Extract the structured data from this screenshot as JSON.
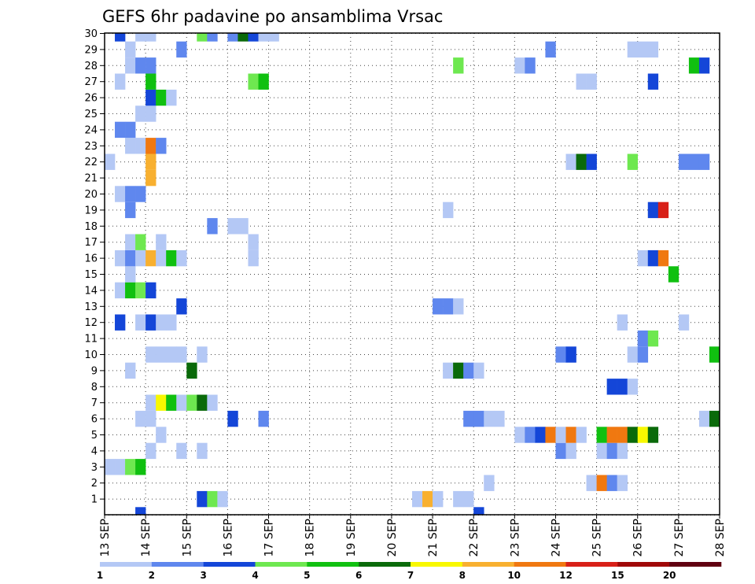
{
  "chart_data": {
    "type": "heatmap",
    "title": "GEFS 6hr padavine po ansamblima Vrsac",
    "xlabel": "",
    "ylabel": "",
    "x_ticks": [
      "13 SEP",
      "14 SEP",
      "15 SEP",
      "16 SEP",
      "17 SEP",
      "18 SEP",
      "19 SEP",
      "20 SEP",
      "21 SEP",
      "22 SEP",
      "23 SEP",
      "24 SEP",
      "25 SEP",
      "26 SEP",
      "27 SEP",
      "28 SEP"
    ],
    "xlim": [
      "13 SEP 00z",
      "28 SEP 00z"
    ],
    "time_step": "6hr",
    "ylim": [
      0,
      30
    ],
    "y_ticks": [
      1,
      2,
      3,
      4,
      5,
      6,
      7,
      8,
      9,
      10,
      11,
      12,
      13,
      14,
      15,
      16,
      17,
      18,
      19,
      20,
      21,
      22,
      23,
      24,
      25,
      26,
      27,
      28,
      29,
      30
    ],
    "grid": true,
    "colorbar": {
      "placement": "bottom",
      "labels": [
        "1",
        "2",
        "3",
        "4",
        "5",
        "6",
        "7",
        "8",
        "10",
        "12",
        "15",
        "20"
      ],
      "colors": [
        "#b4c8f5",
        "#5f87ee",
        "#1446d8",
        "#6ee850",
        "#10c010",
        "#0a6a0a",
        "#f8f800",
        "#f8b030",
        "#f07810",
        "#d82018",
        "#a00808",
        "#600010"
      ]
    },
    "levels": [
      1,
      2,
      3,
      4,
      5,
      6,
      7,
      8,
      10,
      12,
      15,
      20
    ],
    "cell_columns": "6-hour step index from 13 SEP 00z (0-59)",
    "cells": [
      [
        3,
        0,
        3
      ],
      [
        36,
        0,
        3
      ],
      [
        9,
        1,
        3
      ],
      [
        10,
        1,
        4
      ],
      [
        11,
        1,
        1
      ],
      [
        30,
        1,
        1
      ],
      [
        31,
        1,
        8
      ],
      [
        32,
        1,
        1
      ],
      [
        34,
        1,
        1
      ],
      [
        35,
        1,
        1
      ],
      [
        37,
        2,
        1
      ],
      [
        47,
        2,
        1
      ],
      [
        48,
        2,
        10
      ],
      [
        49,
        2,
        2
      ],
      [
        50,
        2,
        1
      ],
      [
        0,
        3,
        1
      ],
      [
        1,
        3,
        1
      ],
      [
        2,
        3,
        4
      ],
      [
        3,
        3,
        5
      ],
      [
        4,
        4,
        1
      ],
      [
        7,
        4,
        1
      ],
      [
        9,
        4,
        1
      ],
      [
        44,
        4,
        2
      ],
      [
        45,
        4,
        1
      ],
      [
        48,
        4,
        1
      ],
      [
        49,
        4,
        2
      ],
      [
        50,
        4,
        1
      ],
      [
        5,
        5,
        1
      ],
      [
        40,
        5,
        1
      ],
      [
        41,
        5,
        2
      ],
      [
        42,
        5,
        3
      ],
      [
        43,
        5,
        10
      ],
      [
        44,
        5,
        1
      ],
      [
        45,
        5,
        10
      ],
      [
        46,
        5,
        1
      ],
      [
        48,
        5,
        5
      ],
      [
        49,
        5,
        10
      ],
      [
        50,
        5,
        10
      ],
      [
        51,
        5,
        6
      ],
      [
        52,
        5,
        7
      ],
      [
        53,
        5,
        6
      ],
      [
        3,
        6,
        1
      ],
      [
        4,
        6,
        1
      ],
      [
        12,
        6,
        3
      ],
      [
        15,
        6,
        2
      ],
      [
        35,
        6,
        2
      ],
      [
        36,
        6,
        2
      ],
      [
        37,
        6,
        1
      ],
      [
        38,
        6,
        1
      ],
      [
        58,
        6,
        1
      ],
      [
        59,
        6,
        6
      ],
      [
        4,
        7,
        1
      ],
      [
        5,
        7,
        7
      ],
      [
        6,
        7,
        5
      ],
      [
        7,
        7,
        1
      ],
      [
        8,
        7,
        4
      ],
      [
        9,
        7,
        6
      ],
      [
        10,
        7,
        1
      ],
      [
        49,
        8,
        3
      ],
      [
        50,
        8,
        3
      ],
      [
        51,
        8,
        1
      ],
      [
        2,
        9,
        1
      ],
      [
        8,
        9,
        6
      ],
      [
        33,
        9,
        1
      ],
      [
        34,
        9,
        6
      ],
      [
        35,
        9,
        2
      ],
      [
        36,
        9,
        1
      ],
      [
        4,
        10,
        1
      ],
      [
        5,
        10,
        1
      ],
      [
        6,
        10,
        1
      ],
      [
        7,
        10,
        1
      ],
      [
        9,
        10,
        1
      ],
      [
        44,
        10,
        2
      ],
      [
        45,
        10,
        3
      ],
      [
        51,
        10,
        1
      ],
      [
        52,
        10,
        2
      ],
      [
        59,
        10,
        5
      ],
      [
        52,
        11,
        2
      ],
      [
        53,
        11,
        4
      ],
      [
        1,
        12,
        3
      ],
      [
        3,
        12,
        1
      ],
      [
        4,
        12,
        3
      ],
      [
        5,
        12,
        1
      ],
      [
        6,
        12,
        1
      ],
      [
        50,
        12,
        1
      ],
      [
        56,
        12,
        1
      ],
      [
        7,
        13,
        3
      ],
      [
        32,
        13,
        2
      ],
      [
        33,
        13,
        2
      ],
      [
        34,
        13,
        1
      ],
      [
        1,
        14,
        1
      ],
      [
        2,
        14,
        5
      ],
      [
        3,
        14,
        4
      ],
      [
        4,
        14,
        3
      ],
      [
        2,
        15,
        1
      ],
      [
        55,
        15,
        5
      ],
      [
        1,
        16,
        1
      ],
      [
        2,
        16,
        2
      ],
      [
        3,
        16,
        1
      ],
      [
        4,
        16,
        8
      ],
      [
        5,
        16,
        1
      ],
      [
        6,
        16,
        5
      ],
      [
        7,
        16,
        1
      ],
      [
        14,
        16,
        1
      ],
      [
        52,
        16,
        1
      ],
      [
        53,
        16,
        3
      ],
      [
        54,
        16,
        10
      ],
      [
        2,
        17,
        1
      ],
      [
        3,
        17,
        4
      ],
      [
        5,
        17,
        1
      ],
      [
        14,
        17,
        1
      ],
      [
        10,
        18,
        2
      ],
      [
        12,
        18,
        1
      ],
      [
        13,
        18,
        1
      ],
      [
        2,
        19,
        2
      ],
      [
        33,
        19,
        1
      ],
      [
        53,
        19,
        3
      ],
      [
        54,
        19,
        12
      ],
      [
        1,
        20,
        1
      ],
      [
        2,
        20,
        2
      ],
      [
        3,
        20,
        2
      ],
      [
        4,
        21,
        8
      ],
      [
        0,
        22,
        1
      ],
      [
        4,
        22,
        8
      ],
      [
        45,
        22,
        1
      ],
      [
        46,
        22,
        6
      ],
      [
        47,
        22,
        3
      ],
      [
        51,
        22,
        4
      ],
      [
        56,
        22,
        2
      ],
      [
        57,
        22,
        2
      ],
      [
        58,
        22,
        2
      ],
      [
        2,
        23,
        1
      ],
      [
        3,
        23,
        1
      ],
      [
        4,
        23,
        10
      ],
      [
        5,
        23,
        2
      ],
      [
        1,
        24,
        2
      ],
      [
        2,
        24,
        2
      ],
      [
        3,
        25,
        1
      ],
      [
        4,
        25,
        1
      ],
      [
        4,
        26,
        3
      ],
      [
        5,
        26,
        5
      ],
      [
        6,
        26,
        1
      ],
      [
        1,
        27,
        1
      ],
      [
        4,
        27,
        5
      ],
      [
        14,
        27,
        4
      ],
      [
        15,
        27,
        5
      ],
      [
        46,
        27,
        1
      ],
      [
        47,
        27,
        1
      ],
      [
        53,
        27,
        3
      ],
      [
        2,
        28,
        1
      ],
      [
        3,
        28,
        2
      ],
      [
        4,
        28,
        2
      ],
      [
        34,
        28,
        4
      ],
      [
        40,
        28,
        1
      ],
      [
        41,
        28,
        2
      ],
      [
        57,
        28,
        5
      ],
      [
        58,
        28,
        3
      ],
      [
        2,
        29,
        1
      ],
      [
        7,
        29,
        2
      ],
      [
        43,
        29,
        2
      ],
      [
        51,
        29,
        1
      ],
      [
        52,
        29,
        1
      ],
      [
        53,
        29,
        1
      ],
      [
        1,
        30,
        3
      ],
      [
        3,
        30,
        1
      ],
      [
        4,
        30,
        1
      ],
      [
        9,
        30,
        4
      ],
      [
        10,
        30,
        2
      ],
      [
        12,
        30,
        2
      ],
      [
        13,
        30,
        6
      ],
      [
        14,
        30,
        3
      ],
      [
        15,
        30,
        1
      ],
      [
        16,
        30,
        1
      ]
    ]
  }
}
